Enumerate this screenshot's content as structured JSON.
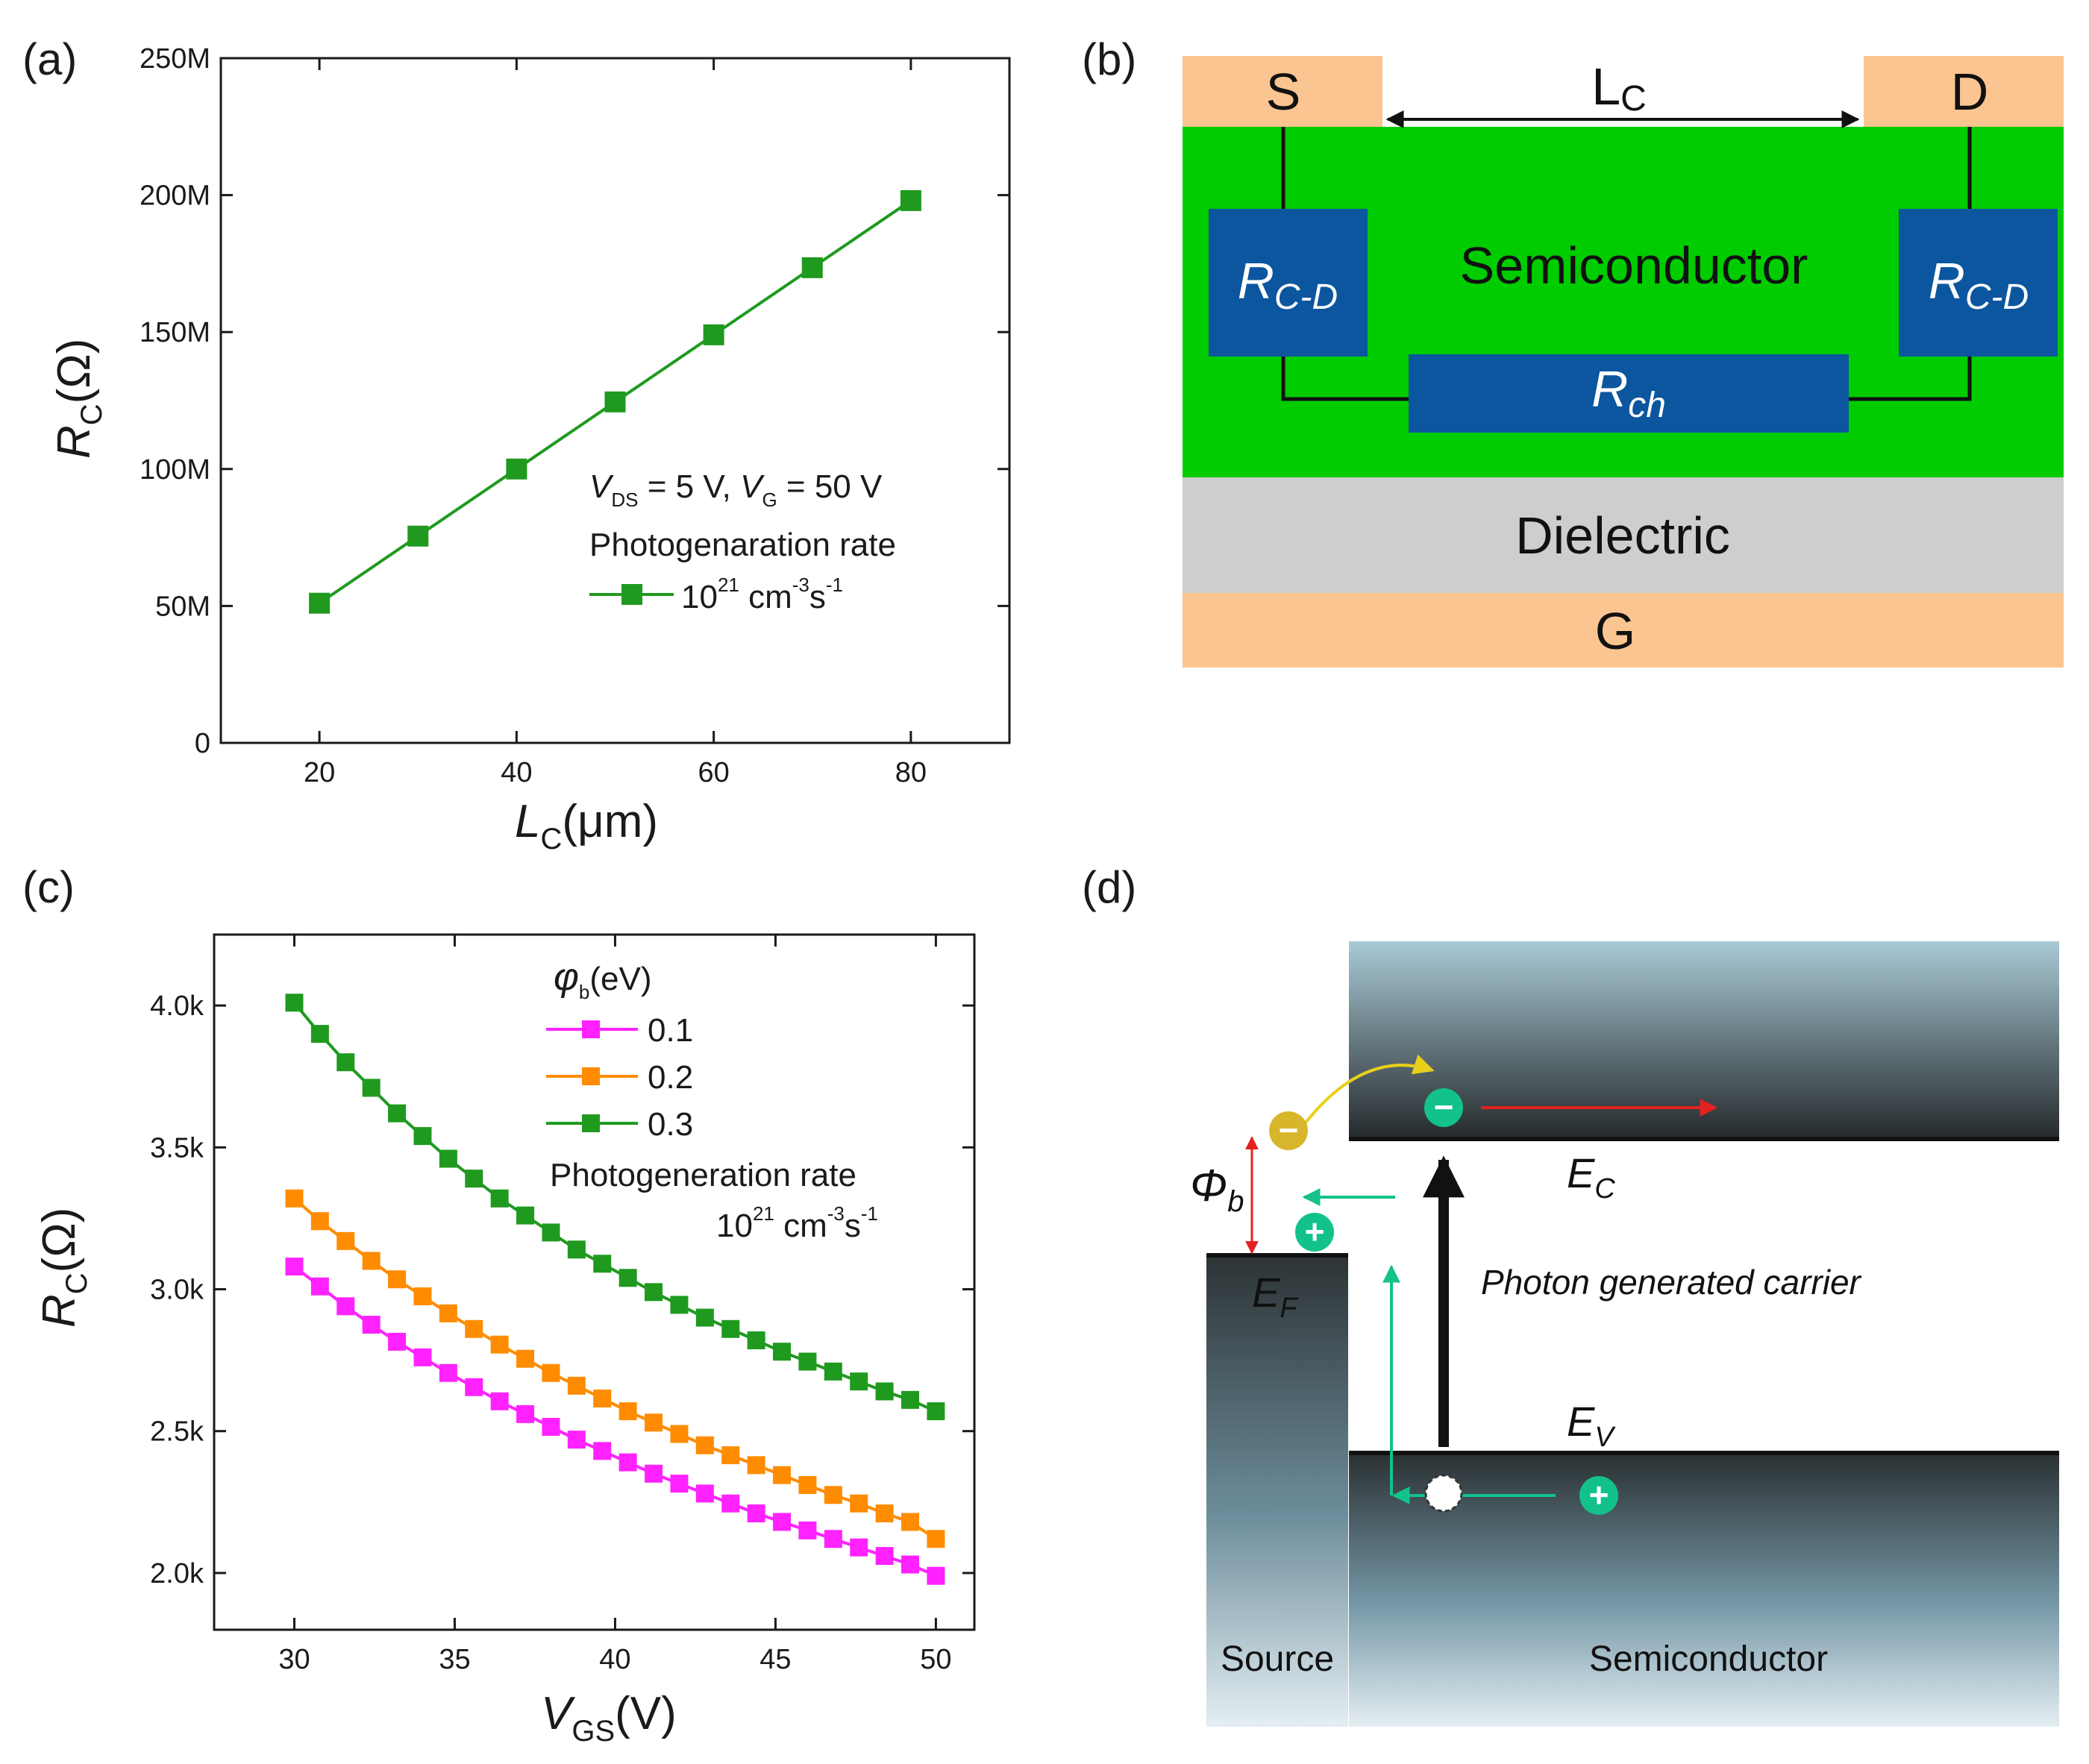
{
  "panels": {
    "a": "(a)",
    "b": "(b)",
    "c": "(c)",
    "d": "(d)"
  },
  "chart_data": [
    {
      "type": "line",
      "panel": "a",
      "xlabel": {
        "main": "L",
        "sub": "C",
        "unit": "(μm)"
      },
      "ylabel": {
        "main": "R",
        "sub": "C",
        "unit": "(Ω)"
      },
      "xlim": [
        10,
        90
      ],
      "ylim": [
        0,
        250000000
      ],
      "xticks": [
        20,
        40,
        60,
        80
      ],
      "xtick_labels": [
        "20",
        "40",
        "60",
        "80"
      ],
      "yticks": [
        0,
        50000000,
        100000000,
        150000000,
        200000000,
        250000000
      ],
      "ytick_labels": [
        "0",
        "50M",
        "100M",
        "150M",
        "200M",
        "250M"
      ],
      "annotation": {
        "v1": "V",
        "v1sub": "DS",
        "eq1": " = 5 V, ",
        "v2": "V",
        "v2sub": "G",
        "eq2": " = 50 V",
        "line2": "Photogenaration rate"
      },
      "series": [
        {
          "name": "10^21 cm^-3s^-1",
          "label_base": "10",
          "label_exp": "21",
          "label_unit1": " cm",
          "label_exp2": "-3",
          "label_unit2": "s",
          "label_exp3": "-1",
          "color": "#1f9a1f",
          "x": [
            20,
            30,
            40,
            50,
            60,
            70,
            80
          ],
          "y": [
            51000000,
            75500000,
            100000000,
            124500000,
            149000000,
            173500000,
            198000000
          ]
        }
      ]
    },
    {
      "type": "line",
      "panel": "c",
      "xlabel": {
        "main": "V",
        "sub": "GS",
        "unit": "(V)"
      },
      "ylabel": {
        "main": "R",
        "sub": "C",
        "unit": "(Ω)"
      },
      "xlim": [
        27.5,
        51.2
      ],
      "ylim": [
        1800,
        4250
      ],
      "xticks": [
        30,
        35,
        40,
        45,
        50
      ],
      "xtick_labels": [
        "30",
        "35",
        "40",
        "45",
        "50"
      ],
      "yticks": [
        2000,
        2500,
        3000,
        3500,
        4000
      ],
      "ytick_labels": [
        "2.0k",
        "2.5k",
        "3.0k",
        "3.5k",
        "4.0k"
      ],
      "legend_title": {
        "sym": "φ",
        "sub": "b",
        "unit": "(eV)"
      },
      "legend_note": {
        "line1": "Photogeneration rate",
        "base": "10",
        "exp": "21",
        "u1": " cm",
        "e2": "-3",
        "u2": "s",
        "e3": "-1"
      },
      "series": [
        {
          "name": "0.1",
          "color": "#ff22ff",
          "x": [
            30,
            30.8,
            31.6,
            32.4,
            33.2,
            34,
            34.8,
            35.6,
            36.4,
            37.2,
            38,
            38.8,
            39.6,
            40.4,
            41.2,
            42,
            42.8,
            43.6,
            44.4,
            45.2,
            46,
            46.8,
            47.6,
            48.4,
            49.2,
            50
          ],
          "y": [
            3080,
            3010,
            2940,
            2875,
            2815,
            2760,
            2705,
            2655,
            2605,
            2560,
            2515,
            2470,
            2430,
            2390,
            2350,
            2315,
            2280,
            2245,
            2210,
            2180,
            2150,
            2120,
            2090,
            2060,
            2030,
            1990
          ]
        },
        {
          "name": "0.2",
          "color": "#ff8c00",
          "x": [
            30,
            30.8,
            31.6,
            32.4,
            33.2,
            34,
            34.8,
            35.6,
            36.4,
            37.2,
            38,
            38.8,
            39.6,
            40.4,
            41.2,
            42,
            42.8,
            43.6,
            44.4,
            45.2,
            46,
            46.8,
            47.6,
            48.4,
            49.2,
            50
          ],
          "y": [
            3320,
            3240,
            3170,
            3100,
            3035,
            2975,
            2915,
            2860,
            2805,
            2755,
            2705,
            2660,
            2615,
            2570,
            2530,
            2490,
            2450,
            2415,
            2380,
            2345,
            2310,
            2275,
            2245,
            2210,
            2180,
            2120
          ]
        },
        {
          "name": "0.3",
          "color": "#1f9a1f",
          "x": [
            30,
            30.8,
            31.6,
            32.4,
            33.2,
            34,
            34.8,
            35.6,
            36.4,
            37.2,
            38,
            38.8,
            39.6,
            40.4,
            41.2,
            42,
            42.8,
            43.6,
            44.4,
            45.2,
            46,
            46.8,
            47.6,
            48.4,
            49.2,
            50
          ],
          "y": [
            4010,
            3900,
            3800,
            3710,
            3620,
            3540,
            3460,
            3390,
            3320,
            3260,
            3200,
            3140,
            3090,
            3040,
            2990,
            2945,
            2900,
            2860,
            2820,
            2780,
            2745,
            2710,
            2675,
            2640,
            2610,
            2570
          ]
        }
      ]
    }
  ],
  "diagram_b": {
    "source": "S",
    "drain": "D",
    "length": "L",
    "length_sub": "C",
    "semiconductor": "Semiconductor",
    "dielectric": "Dielectric",
    "gate": "G",
    "r_left": "R",
    "r_left_sub": "C-D",
    "r_right": "R",
    "r_right_sub": "C-D",
    "r_ch": "R",
    "r_ch_sub": "ch",
    "colors": {
      "contact": "#fac591",
      "semi": "#00cc00",
      "dielectric": "#cccfcc",
      "resistor": "#0b569e"
    }
  },
  "diagram_d": {
    "phi": "Φ",
    "phi_sub": "b",
    "ec": "E",
    "ec_sub": "C",
    "ef": "E",
    "ef_sub": "F",
    "ev": "E",
    "ev_sub": "V",
    "photon": "Photon generated carrier",
    "source": "Source",
    "semiconductor": "Semiconductor",
    "minus": "−",
    "plus": "+"
  }
}
